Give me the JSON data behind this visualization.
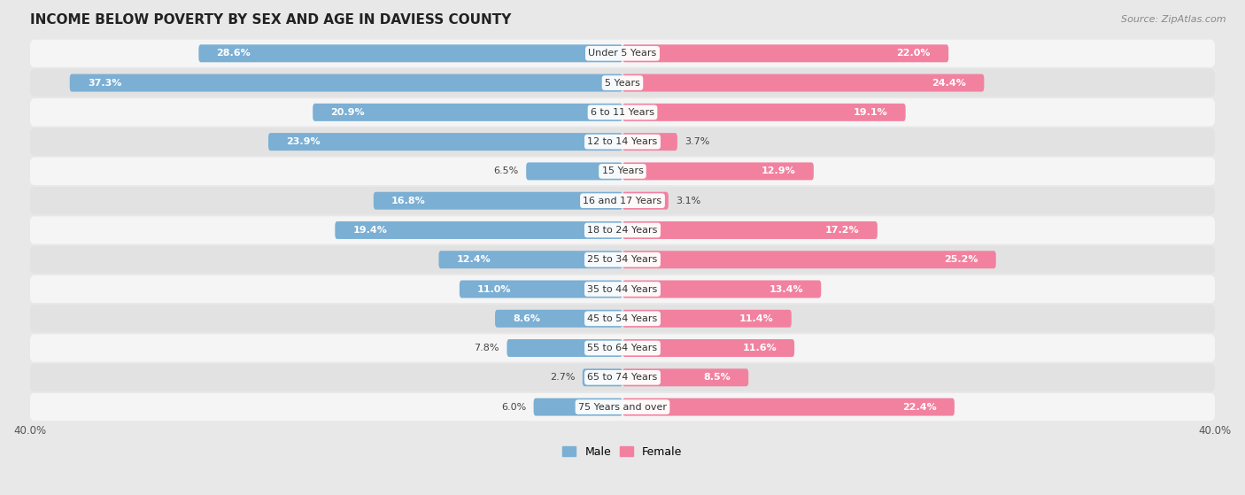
{
  "title": "INCOME BELOW POVERTY BY SEX AND AGE IN DAVIESS COUNTY",
  "source": "Source: ZipAtlas.com",
  "categories": [
    "Under 5 Years",
    "5 Years",
    "6 to 11 Years",
    "12 to 14 Years",
    "15 Years",
    "16 and 17 Years",
    "18 to 24 Years",
    "25 to 34 Years",
    "35 to 44 Years",
    "45 to 54 Years",
    "55 to 64 Years",
    "65 to 74 Years",
    "75 Years and over"
  ],
  "male_values": [
    28.6,
    37.3,
    20.9,
    23.9,
    6.5,
    16.8,
    19.4,
    12.4,
    11.0,
    8.6,
    7.8,
    2.7,
    6.0
  ],
  "female_values": [
    22.0,
    24.4,
    19.1,
    3.7,
    12.9,
    3.1,
    17.2,
    25.2,
    13.4,
    11.4,
    11.6,
    8.5,
    22.4
  ],
  "male_color": "#7bafd4",
  "female_color": "#f281a0",
  "male_label": "Male",
  "female_label": "Female",
  "xlim": 40.0,
  "bg_color": "#e8e8e8",
  "row_bg_white": "#f5f5f5",
  "row_bg_gray": "#e2e2e2",
  "title_fontsize": 11,
  "source_fontsize": 8,
  "label_fontsize": 8,
  "category_fontsize": 8,
  "axis_label_fontsize": 8.5,
  "bar_height": 0.6
}
